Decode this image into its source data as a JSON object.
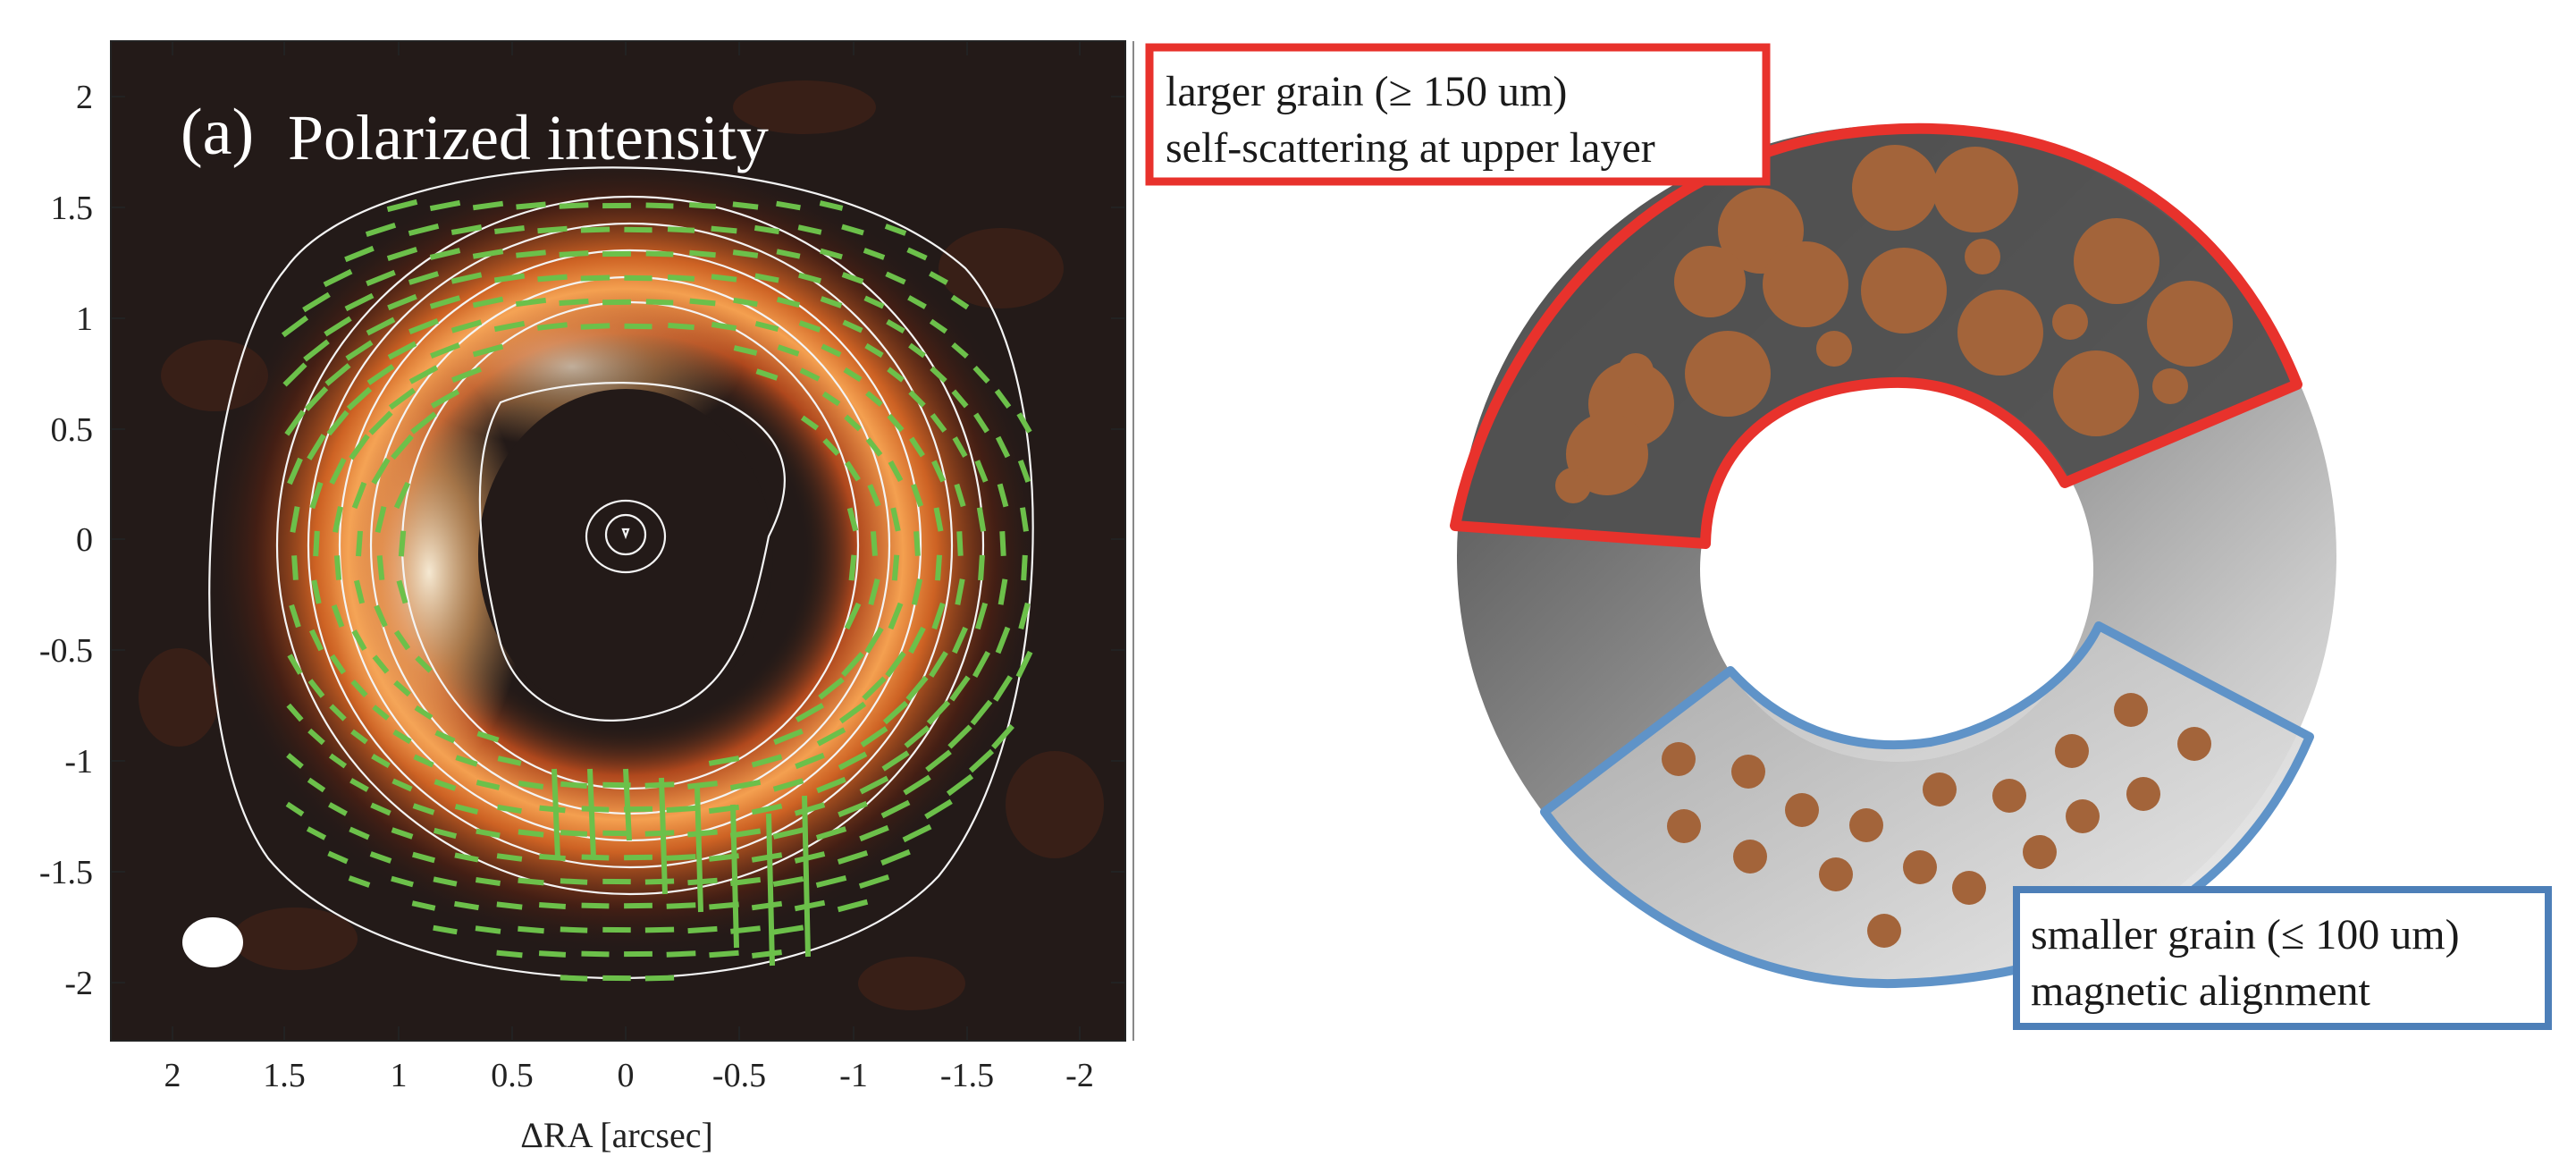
{
  "left_panel": {
    "panel_letter": "(a)",
    "title": "Polarized intensity",
    "x_axis_label": "ΔRA [arcsec]",
    "x_ticks": [
      "2",
      "1.5",
      "1",
      "0.5",
      "0",
      "-0.5",
      "-1",
      "-1.5",
      "-2"
    ],
    "y_ticks": [
      "2",
      "1.5",
      "1",
      "0.5",
      "0",
      "-0.5",
      "-1",
      "-1.5",
      "-2"
    ],
    "colors": {
      "background": "#231a18",
      "vectors": "#6cc04a",
      "contours": "#f4f4f4",
      "beam": "#ffffff"
    }
  },
  "right_panel": {
    "upper_box": {
      "line1": "larger grain (≥ 150 um)",
      "line2": "self-scattering at upper layer",
      "border_color": "#e8322c"
    },
    "lower_box": {
      "line1": "smaller grain (≤ 100 um)",
      "line2": "magnetic alignment",
      "border_color": "#4d7fb8"
    },
    "grain_color": "#a3643a"
  }
}
